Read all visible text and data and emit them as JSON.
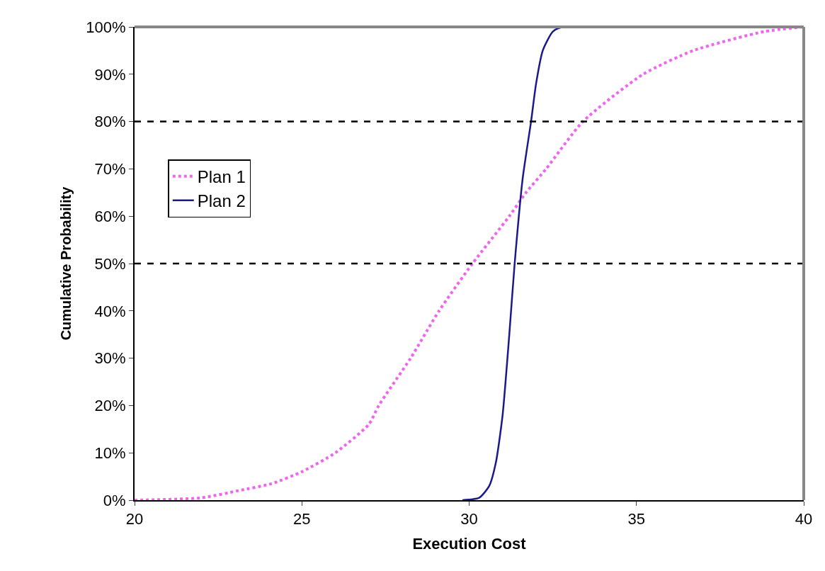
{
  "chart_data": {
    "type": "line",
    "xlabel": "Execution Cost",
    "ylabel": "Cumulative Probability",
    "xlim": [
      20,
      40
    ],
    "xticks": [
      20,
      25,
      30,
      35,
      40
    ],
    "ylim": [
      0,
      100
    ],
    "yticks": [
      {
        "value": 0,
        "label": "0%"
      },
      {
        "value": 10,
        "label": "10%"
      },
      {
        "value": 20,
        "label": "20%"
      },
      {
        "value": 30,
        "label": "30%"
      },
      {
        "value": 40,
        "label": "40%"
      },
      {
        "value": 50,
        "label": "50%"
      },
      {
        "value": 60,
        "label": "60%"
      },
      {
        "value": 70,
        "label": "70%"
      },
      {
        "value": 80,
        "label": "80%"
      },
      {
        "value": 90,
        "label": "90%"
      },
      {
        "value": 100,
        "label": "100%"
      }
    ],
    "legend": "left",
    "marker": "none",
    "series": [
      {
        "name": "Plan 1",
        "color": "#ee66ee",
        "line_style": "dotted",
        "x": [
          20,
          22,
          23.1,
          24.1,
          25,
          26,
          27,
          27.3,
          28.25,
          29.1,
          30.1,
          31.2,
          31.7,
          32.3,
          33.4,
          35.2,
          36.7,
          38.8,
          40
        ],
        "values": [
          0,
          0.5,
          2,
          3.5,
          6,
          10,
          16,
          20,
          30,
          40,
          50,
          60,
          65,
          70,
          80,
          90,
          95,
          99,
          100
        ]
      },
      {
        "name": "Plan 2",
        "color": "#1a1a8c",
        "line_style": "solid",
        "x": [
          29.8,
          30.3,
          30.6,
          30.8,
          31,
          31.2,
          31.36,
          31.6,
          31.85,
          32,
          32.2,
          32.5,
          32.8,
          40
        ],
        "values": [
          0,
          0.5,
          3,
          8,
          18,
          35,
          50,
          68,
          80,
          88,
          95,
          99,
          100,
          100
        ]
      }
    ],
    "ref_lines": [
      {
        "axis": "y",
        "value": 50,
        "color": "#000000",
        "line_style": "dashed"
      },
      {
        "axis": "y",
        "value": 80,
        "color": "#000000",
        "line_style": "dashed"
      }
    ]
  }
}
